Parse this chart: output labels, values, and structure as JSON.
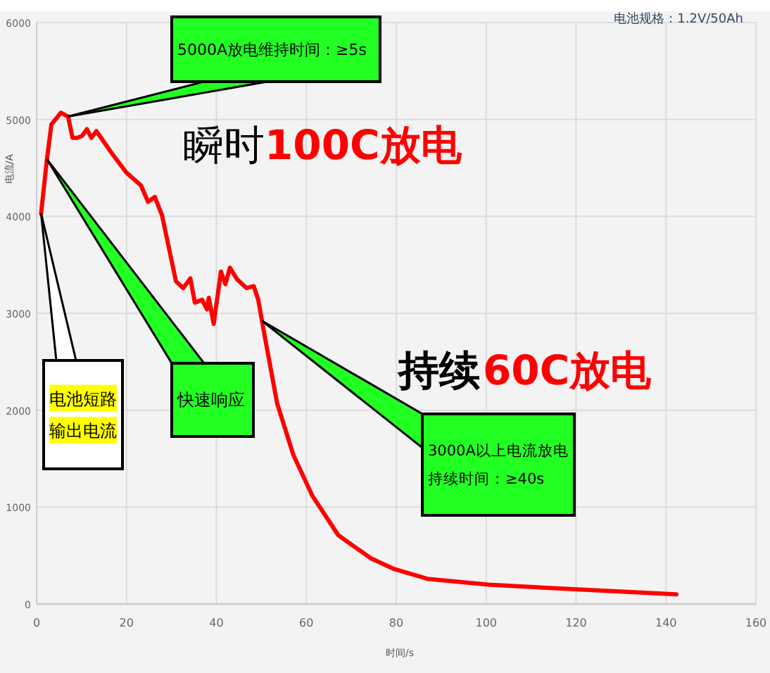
{
  "chart_data": {
    "type": "line",
    "xlabel": "时间/s",
    "ylabel": "电流/A",
    "x": [
      1,
      2.3,
      3.3,
      5.4,
      7,
      8,
      9.1,
      10.1,
      11.2,
      12.2,
      13.3,
      16.9,
      20,
      23.2,
      24.8,
      26.3,
      27.9,
      31,
      32.6,
      34.2,
      35.2,
      36.8,
      37.9,
      38.3,
      39.4,
      41,
      42,
      43,
      44.6,
      46.7,
      48.3,
      49.3,
      50.4,
      53.5,
      57.1,
      61.3,
      67.1,
      74.4,
      79.6,
      86.9,
      100.5,
      120.4,
      142.3
    ],
    "series": [
      {
        "color": "#ff0000",
        "values": [
          4030,
          4590,
          4950,
          5070,
          5030,
          4810,
          4810,
          4830,
          4900,
          4810,
          4880,
          4640,
          4450,
          4320,
          4150,
          4200,
          4010,
          3330,
          3260,
          3360,
          3110,
          3140,
          3040,
          3160,
          2890,
          3430,
          3300,
          3470,
          3350,
          3260,
          3280,
          3140,
          2850,
          2070,
          1540,
          1120,
          710,
          470,
          360,
          260,
          200,
          150,
          100
        ]
      }
    ],
    "xlim": [
      0,
      160
    ],
    "ylim": [
      0,
      6000
    ],
    "xticks": [
      0,
      20,
      40,
      60,
      80,
      100,
      120,
      140,
      160
    ],
    "yticks": [
      0,
      1000,
      2000,
      3000,
      4000,
      5000,
      6000
    ],
    "grid": true,
    "annotations": [
      "电池规格：1.2V/50Ah",
      {
        "text": "5000A放电维持时间：≥5s",
        "x": 7,
        "y": 5030
      },
      {
        "text": "快速响应",
        "x": 2.3,
        "y": 4590
      },
      {
        "text": "电池短路输出电流",
        "x": 1,
        "y": 4030
      },
      {
        "text": "3000A以上电流放电持续时间：≥40s",
        "x": 50.2,
        "y": 2920
      },
      "瞬时",
      "100C放电",
      "持续",
      "60C放电"
    ]
  }
}
